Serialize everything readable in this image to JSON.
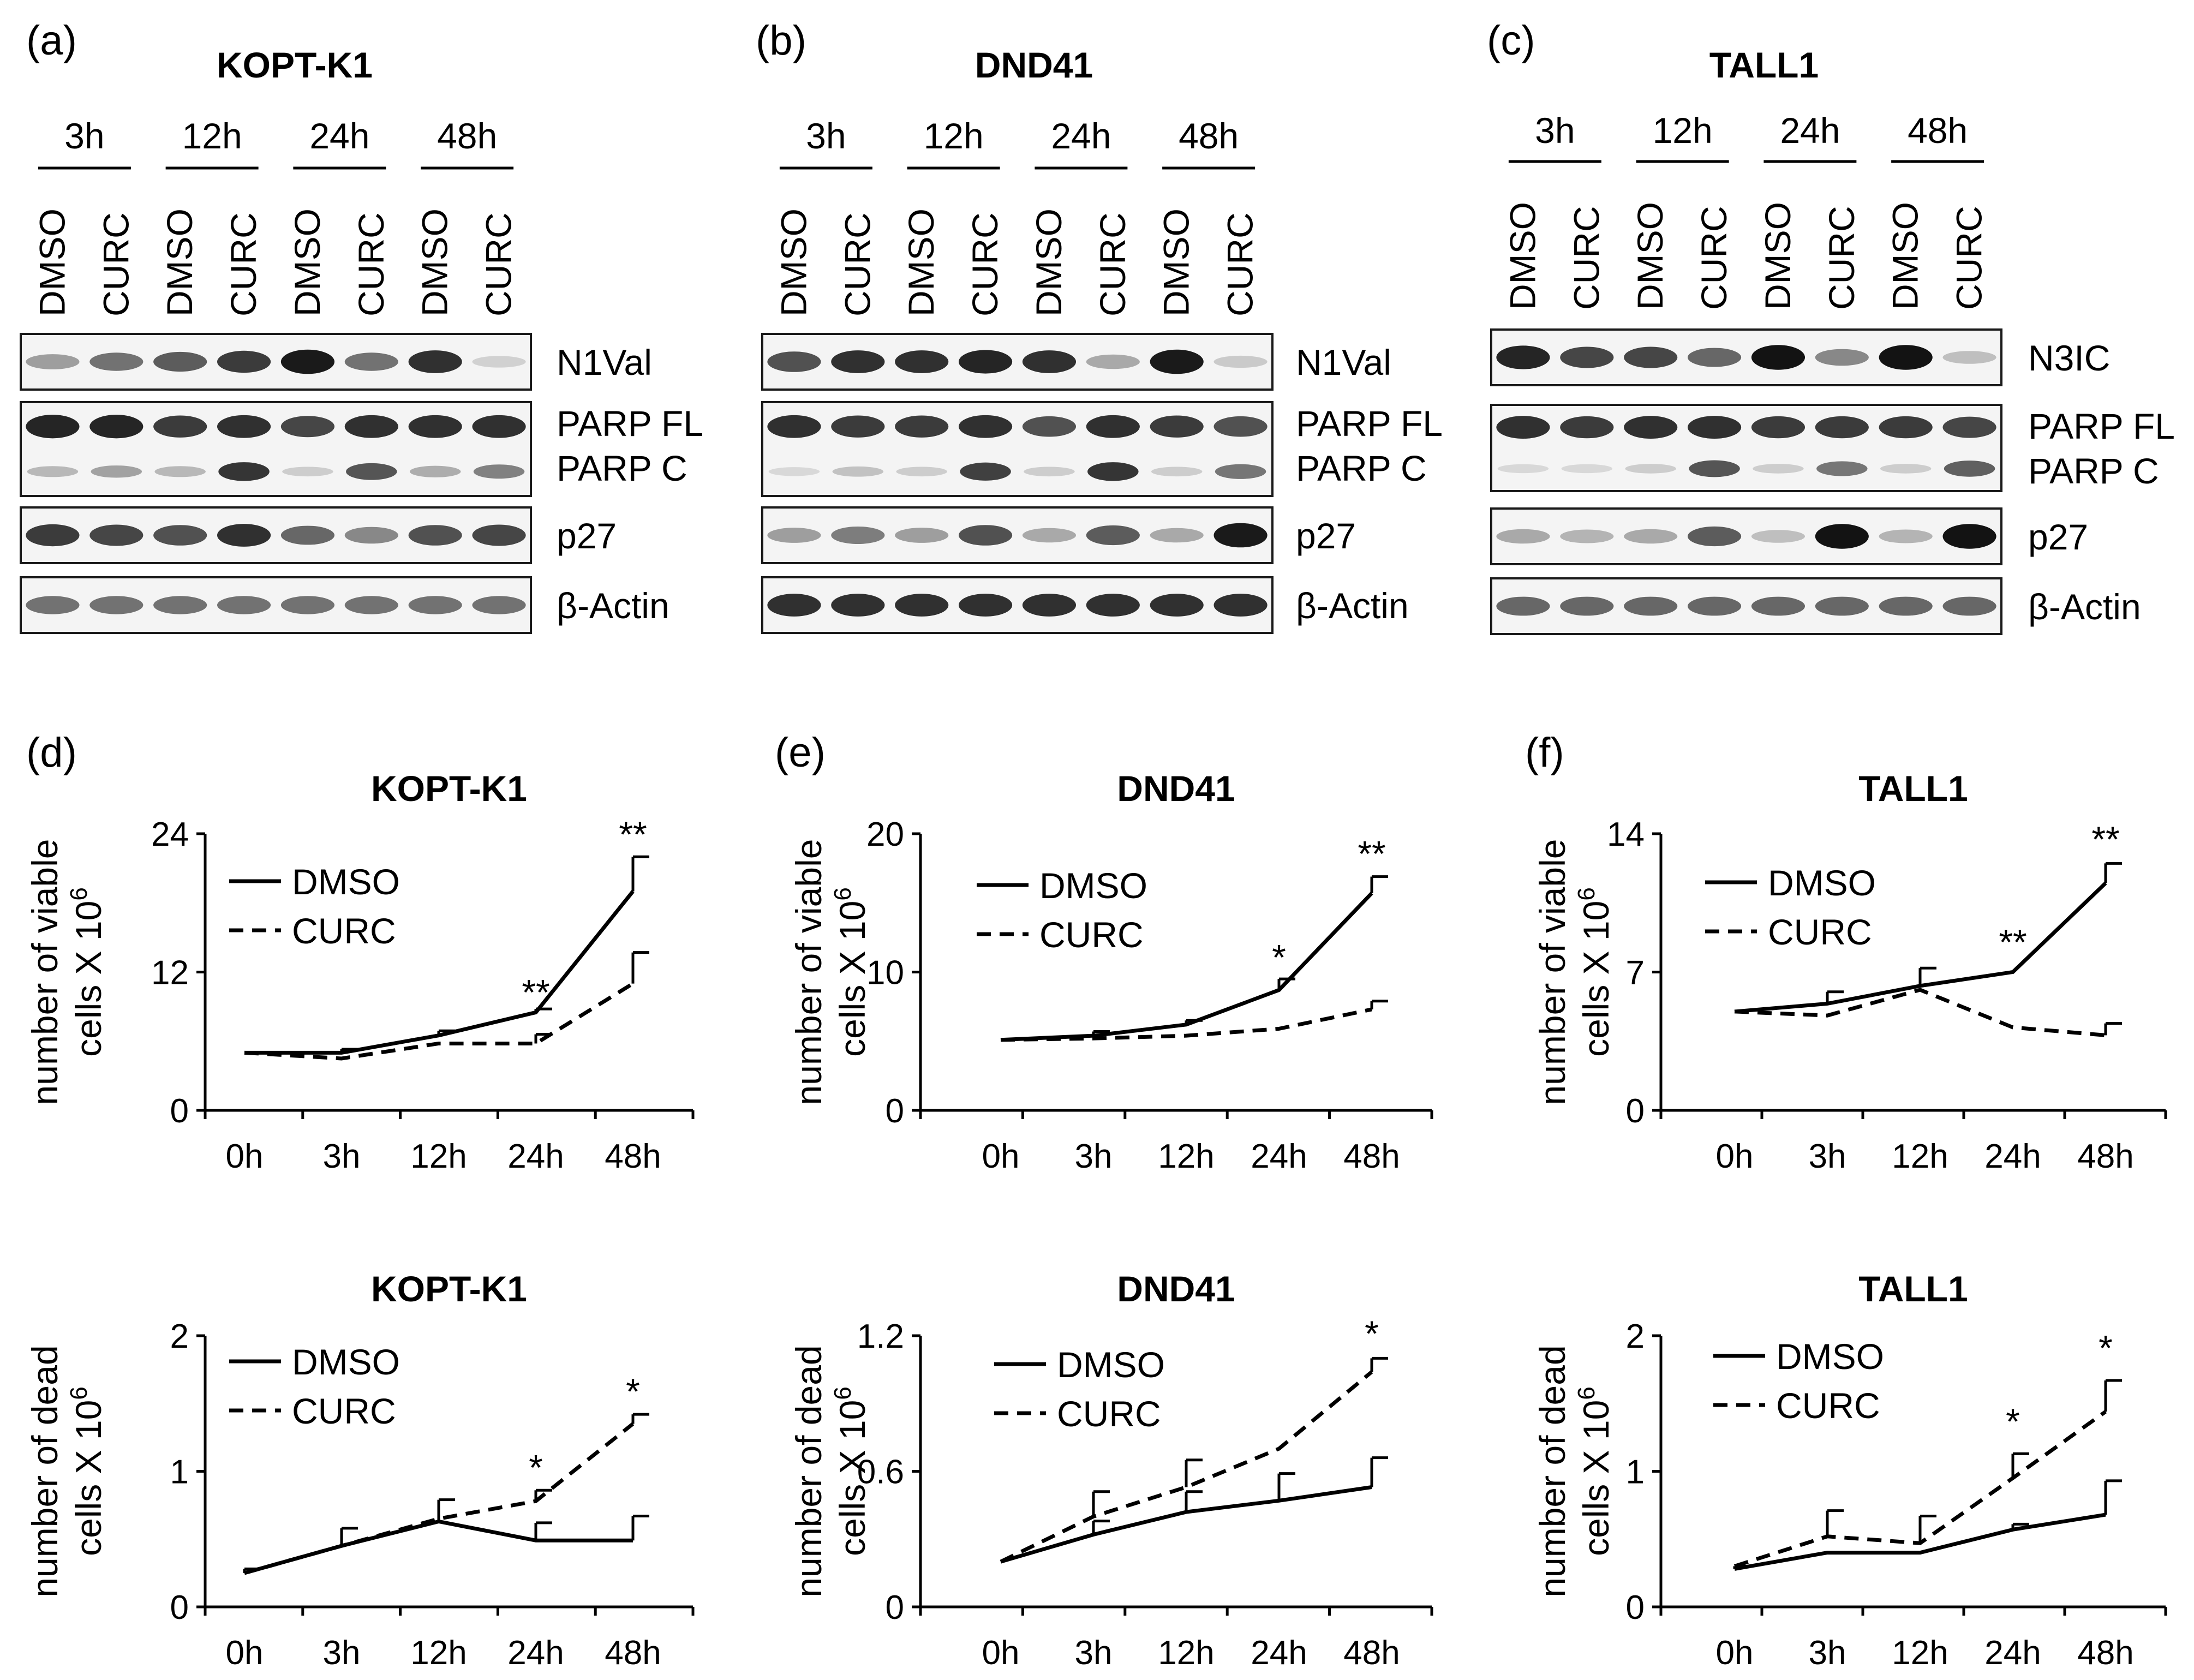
{
  "blots": [
    {
      "letter": "(a)",
      "cell_line": "KOPT-K1",
      "timepoints": [
        "3h",
        "12h",
        "24h",
        "48h"
      ],
      "lanes": [
        "DMSO",
        "CURC",
        "DMSO",
        "CURC",
        "DMSO",
        "CURC",
        "DMSO",
        "CURC"
      ],
      "bands": [
        {
          "labels": [
            "N1Val"
          ],
          "intensity": [
            0.35,
            0.55,
            0.65,
            0.8,
            0.95,
            0.55,
            0.85,
            0.12
          ]
        },
        {
          "labels": [
            "PARP FL",
            "PARP C"
          ],
          "intensity": [
            0.9,
            0.9,
            0.8,
            0.85,
            0.75,
            0.85,
            0.85,
            0.85
          ],
          "cleaved": [
            0.25,
            0.35,
            0.25,
            0.85,
            0.15,
            0.7,
            0.3,
            0.5
          ]
        },
        {
          "labels": [
            "p27"
          ],
          "intensity": [
            0.8,
            0.75,
            0.7,
            0.85,
            0.6,
            0.45,
            0.7,
            0.75
          ]
        },
        {
          "labels": [
            "β-Actin"
          ],
          "intensity": [
            0.55,
            0.55,
            0.55,
            0.55,
            0.55,
            0.55,
            0.55,
            0.55
          ]
        }
      ]
    },
    {
      "letter": "(b)",
      "cell_line": "DND41",
      "timepoints": [
        "3h",
        "12h",
        "24h",
        "48h"
      ],
      "lanes": [
        "DMSO",
        "CURC",
        "DMSO",
        "CURC",
        "DMSO",
        "CURC",
        "DMSO",
        "CURC"
      ],
      "bands": [
        {
          "labels": [
            "N1Val"
          ],
          "intensity": [
            0.7,
            0.85,
            0.85,
            0.9,
            0.85,
            0.3,
            0.95,
            0.15
          ]
        },
        {
          "labels": [
            "PARP FL",
            "PARP C"
          ],
          "intensity": [
            0.85,
            0.8,
            0.8,
            0.85,
            0.7,
            0.85,
            0.8,
            0.7
          ],
          "cleaved": [
            0.1,
            0.2,
            0.15,
            0.8,
            0.15,
            0.85,
            0.15,
            0.55
          ]
        },
        {
          "labels": [
            "p27"
          ],
          "intensity": [
            0.35,
            0.5,
            0.35,
            0.7,
            0.3,
            0.65,
            0.3,
            0.95
          ]
        },
        {
          "labels": [
            "β-Actin"
          ],
          "intensity": [
            0.85,
            0.85,
            0.85,
            0.85,
            0.85,
            0.85,
            0.85,
            0.85
          ]
        }
      ]
    },
    {
      "letter": "(c)",
      "cell_line": "TALL1",
      "timepoints": [
        "3h",
        "12h",
        "24h",
        "48h"
      ],
      "lanes": [
        "DMSO",
        "CURC",
        "DMSO",
        "CURC",
        "DMSO",
        "CURC",
        "DMSO",
        "CURC"
      ],
      "bands": [
        {
          "labels": [
            "N3IC"
          ],
          "intensity": [
            0.9,
            0.75,
            0.75,
            0.6,
            0.98,
            0.45,
            0.98,
            0.2
          ]
        },
        {
          "labels": [
            "PARP FL",
            "PARP C"
          ],
          "intensity": [
            0.85,
            0.8,
            0.85,
            0.85,
            0.8,
            0.8,
            0.8,
            0.75
          ],
          "cleaved": [
            0.1,
            0.1,
            0.15,
            0.7,
            0.15,
            0.55,
            0.15,
            0.65
          ]
        },
        {
          "labels": [
            "p27"
          ],
          "intensity": [
            0.3,
            0.25,
            0.3,
            0.65,
            0.2,
            0.98,
            0.25,
            0.98
          ]
        },
        {
          "labels": [
            "β-Actin"
          ],
          "intensity": [
            0.6,
            0.6,
            0.6,
            0.6,
            0.6,
            0.6,
            0.6,
            0.6
          ]
        }
      ]
    }
  ],
  "chart_data": [
    {
      "type": "line",
      "letter": "(d)",
      "title": "KOPT-K1",
      "ylabel_line1": "number of viable",
      "ylabel_line2": "cells X 10",
      "ylabel_exp": "6",
      "categories": [
        "0h",
        "3h",
        "12h",
        "24h",
        "48h"
      ],
      "ylim": [
        0,
        24
      ],
      "yticks": [
        "0",
        "12",
        "24"
      ],
      "series": [
        {
          "name": "DMSO",
          "style": "solid",
          "values": [
            5,
            5,
            6.5,
            8.5,
            19
          ],
          "err": [
            0,
            0.3,
            0.4,
            0.3,
            3
          ]
        },
        {
          "name": "CURC",
          "style": "dash",
          "values": [
            5,
            4.5,
            5.8,
            5.8,
            11
          ],
          "err": [
            0,
            0,
            0,
            0.8,
            2.7
          ]
        }
      ],
      "annotations": [
        {
          "x": 3,
          "y": 8.5,
          "text": "**"
        },
        {
          "x": 4,
          "y": 22.2,
          "text": "**"
        }
      ]
    },
    {
      "type": "line",
      "letter": "(e)",
      "title": "DND41",
      "ylabel_line1": "number of viable",
      "ylabel_line2": "cells X 10",
      "ylabel_exp": "6",
      "categories": [
        "0h",
        "3h",
        "12h",
        "24h",
        "48h"
      ],
      "ylim": [
        0,
        20
      ],
      "yticks": [
        "0",
        "10",
        "20"
      ],
      "series": [
        {
          "name": "DMSO",
          "style": "solid",
          "values": [
            5.1,
            5.4,
            6.2,
            8.7,
            15.7
          ],
          "err": [
            0,
            0.3,
            0.3,
            0.8,
            1.2
          ]
        },
        {
          "name": "CURC",
          "style": "dash",
          "values": [
            5.1,
            5.2,
            5.4,
            5.9,
            7.3
          ],
          "err": [
            0,
            0,
            0,
            0,
            0.6
          ]
        }
      ],
      "annotations": [
        {
          "x": 3,
          "y": 9.6,
          "text": "*"
        },
        {
          "x": 4,
          "y": 17.1,
          "text": "**"
        }
      ]
    },
    {
      "type": "line",
      "letter": "(f)",
      "title": "TALL1",
      "ylabel_line1": "number of viable",
      "ylabel_line2": "cells X 10",
      "ylabel_exp": "6",
      "categories": [
        "0h",
        "3h",
        "12h",
        "24h",
        "48h"
      ],
      "ylim": [
        0,
        14
      ],
      "yticks": [
        "0",
        "7",
        "14"
      ],
      "series": [
        {
          "name": "DMSO",
          "style": "solid",
          "values": [
            5,
            5.4,
            6.3,
            7,
            11.5
          ],
          "err": [
            0,
            0.6,
            0.9,
            0,
            1
          ]
        },
        {
          "name": "CURC",
          "style": "dash",
          "values": [
            5,
            4.8,
            6.1,
            4.2,
            3.8
          ],
          "err": [
            0,
            0,
            0,
            0,
            0.6
          ]
        }
      ],
      "annotations": [
        {
          "x": 3,
          "y": 7.5,
          "text": "**"
        },
        {
          "x": 4,
          "y": 12.7,
          "text": "**"
        }
      ]
    },
    {
      "type": "line",
      "letter": "",
      "title": "KOPT-K1",
      "ylabel_line1": "number of dead",
      "ylabel_line2": "cells X 10",
      "ylabel_exp": "6",
      "categories": [
        "0h",
        "3h",
        "12h",
        "24h",
        "48h"
      ],
      "ylim": [
        0,
        2
      ],
      "yticks": [
        "0",
        "1",
        "2"
      ],
      "series": [
        {
          "name": "DMSO",
          "style": "solid",
          "values": [
            0.25,
            0.45,
            0.63,
            0.49,
            0.49
          ],
          "err": [
            0.03,
            0.13,
            0.16,
            0.13,
            0.18
          ]
        },
        {
          "name": "CURC",
          "style": "dash",
          "values": [
            0.25,
            0.45,
            0.65,
            0.78,
            1.35
          ],
          "err": [
            0,
            0,
            0,
            0.08,
            0.07
          ]
        }
      ],
      "annotations": [
        {
          "x": 3,
          "y": 0.88,
          "text": "*"
        },
        {
          "x": 4,
          "y": 1.44,
          "text": "*"
        }
      ]
    },
    {
      "type": "line",
      "letter": "",
      "title": "DND41",
      "ylabel_line1": "number of dead",
      "ylabel_line2": "cells X 10",
      "ylabel_exp": "6",
      "categories": [
        "0h",
        "3h",
        "12h",
        "24h",
        "48h"
      ],
      "ylim": [
        0,
        1.2
      ],
      "yticks": [
        "0",
        "0.6",
        "1.2"
      ],
      "series": [
        {
          "name": "DMSO",
          "style": "solid",
          "values": [
            0.2,
            0.32,
            0.42,
            0.47,
            0.53
          ],
          "err": [
            0,
            0.06,
            0.09,
            0.12,
            0.13
          ]
        },
        {
          "name": "CURC",
          "style": "dash",
          "values": [
            0.2,
            0.4,
            0.53,
            0.7,
            1.04
          ],
          "err": [
            0,
            0.11,
            0.12,
            0,
            0.06
          ]
        }
      ],
      "annotations": [
        {
          "x": 4,
          "y": 1.12,
          "text": "*"
        }
      ]
    },
    {
      "type": "line",
      "letter": "",
      "title": "TALL1",
      "ylabel_line1": "number of dead",
      "ylabel_line2": "cells X 10",
      "ylabel_exp": "6",
      "categories": [
        "0h",
        "3h",
        "12h",
        "24h",
        "48h"
      ],
      "ylim": [
        0,
        2
      ],
      "yticks": [
        "0",
        "1",
        "2"
      ],
      "series": [
        {
          "name": "DMSO",
          "style": "solid",
          "values": [
            0.28,
            0.4,
            0.4,
            0.57,
            0.68
          ],
          "err": [
            0.02,
            0,
            0,
            0.04,
            0.25
          ]
        },
        {
          "name": "CURC",
          "style": "dash",
          "values": [
            0.3,
            0.52,
            0.47,
            0.95,
            1.44
          ],
          "err": [
            0,
            0.19,
            0.2,
            0.18,
            0.23
          ]
        }
      ],
      "annotations": [
        {
          "x": 3,
          "y": 1.22,
          "text": "*"
        },
        {
          "x": 4,
          "y": 1.76,
          "text": "*"
        }
      ]
    }
  ]
}
